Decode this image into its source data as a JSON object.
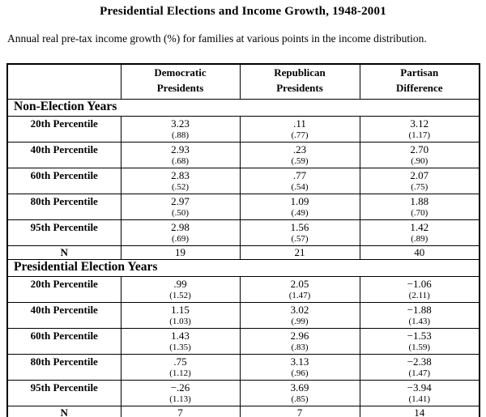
{
  "page": {
    "title": "Presidential Elections and Income Growth, 1948-2001",
    "subtitle": "Annual real pre-tax income growth (%) for families at various points in the income distribution."
  },
  "colors": {
    "text": "#000000",
    "background": "#ffffff",
    "border": "#000000"
  },
  "table": {
    "headers": [
      {
        "line1": "",
        "line2": ""
      },
      {
        "line1": "Democratic",
        "line2": "Presidents"
      },
      {
        "line1": "Republican",
        "line2": "Presidents"
      },
      {
        "line1": "Partisan",
        "line2": "Difference"
      }
    ],
    "sections": [
      {
        "label": "Non-Election Years",
        "rows": [
          {
            "label": "20th Percentile",
            "dem": "3.23",
            "dem_se": "(.88)",
            "rep": ".11",
            "rep_se": "(.77)",
            "diff": "3.12",
            "diff_se": "(1.17)"
          },
          {
            "label": "40th Percentile",
            "dem": "2.93",
            "dem_se": "(.68)",
            "rep": ".23",
            "rep_se": "(.59)",
            "diff": "2.70",
            "diff_se": "(.90)"
          },
          {
            "label": "60th Percentile",
            "dem": "2.83",
            "dem_se": "(.52)",
            "rep": ".77",
            "rep_se": "(.54)",
            "diff": "2.07",
            "diff_se": "(.75)"
          },
          {
            "label": "80th Percentile",
            "dem": "2.97",
            "dem_se": "(.50)",
            "rep": "1.09",
            "rep_se": "(.49)",
            "diff": "1.88",
            "diff_se": "(.70)"
          },
          {
            "label": "95th Percentile",
            "dem": "2.98",
            "dem_se": "(.69)",
            "rep": "1.56",
            "rep_se": "(.57)",
            "diff": "1.42",
            "diff_se": "(.89)"
          }
        ],
        "n_row": {
          "label": "N",
          "dem": "19",
          "rep": "21",
          "diff": "40"
        }
      },
      {
        "label": "Presidential Election Years",
        "rows": [
          {
            "label": "20th Percentile",
            "dem": ".99",
            "dem_se": "(1.52)",
            "rep": "2.05",
            "rep_se": "(1.47)",
            "diff": "−1.06",
            "diff_se": "(2.11)"
          },
          {
            "label": "40th Percentile",
            "dem": "1.15",
            "dem_se": "(1.03)",
            "rep": "3.02",
            "rep_se": "(.99)",
            "diff": "−1.88",
            "diff_se": "(1.43)"
          },
          {
            "label": "60th Percentile",
            "dem": "1.43",
            "dem_se": "(1.35)",
            "rep": "2.96",
            "rep_se": "(.83)",
            "diff": "−1.53",
            "diff_se": "(1.59)"
          },
          {
            "label": "80th Percentile",
            "dem": ".75",
            "dem_se": "(1.12)",
            "rep": "3.13",
            "rep_se": "(.96)",
            "diff": "−2.38",
            "diff_se": "(1.47)"
          },
          {
            "label": "95th Percentile",
            "dem": "−.26",
            "dem_se": "(1.13)",
            "rep": "3.69",
            "rep_se": "(.85)",
            "diff": "−3.94",
            "diff_se": "(1.41)"
          }
        ],
        "n_row": {
          "label": "N",
          "dem": "7",
          "rep": "7",
          "diff": "14"
        }
      }
    ]
  }
}
